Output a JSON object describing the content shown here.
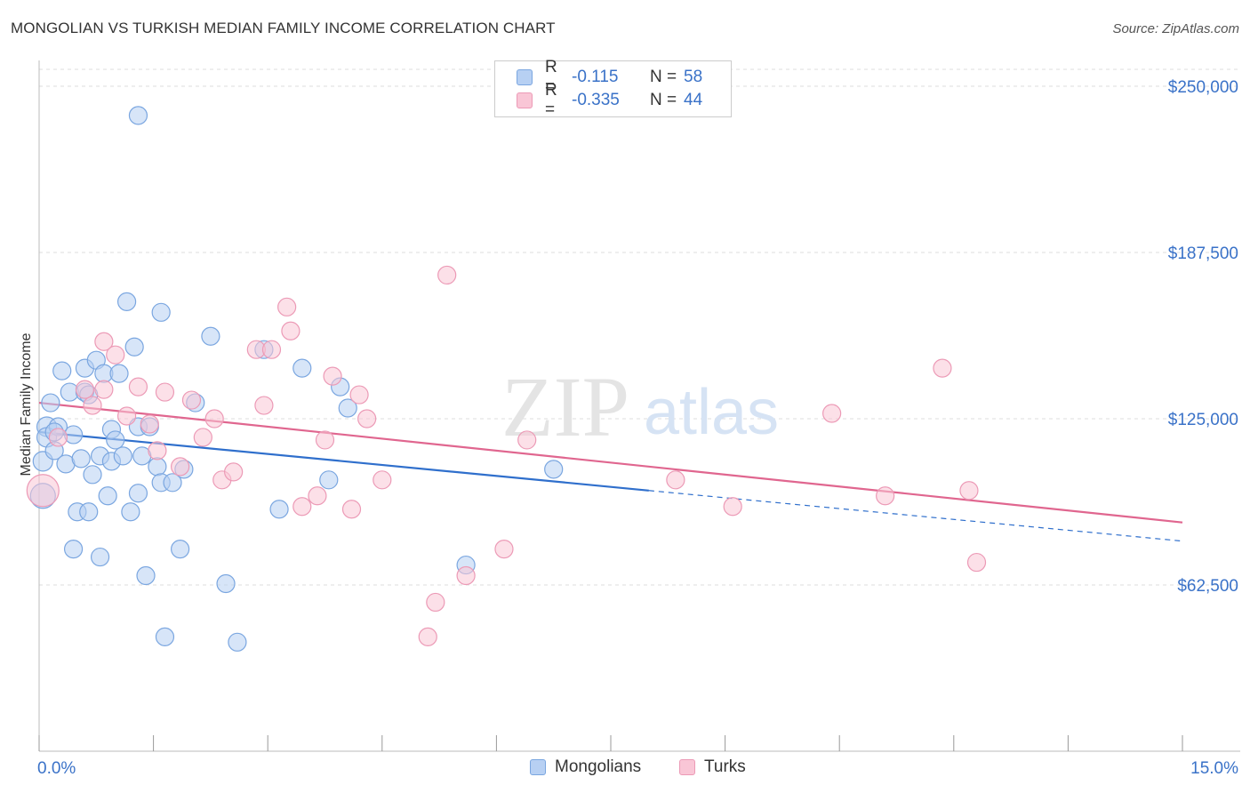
{
  "title": "MONGOLIAN VS TURKISH MEDIAN FAMILY INCOME CORRELATION CHART",
  "source": "Source: ZipAtlas.com",
  "watermark": {
    "zip": "ZIP",
    "atlas": "atlas"
  },
  "legend": {
    "r_label": "R =",
    "n_label": "N =",
    "rows": [
      {
        "r": "-0.115",
        "n": "58"
      },
      {
        "r": "-0.335",
        "n": "44"
      }
    ]
  },
  "colors": {
    "mongolians_fill": "#b7d0f3",
    "mongolians_stroke": "#7aa6e0",
    "mongolians_line": "#2f6fcc",
    "turks_fill": "#f9c6d6",
    "turks_stroke": "#ec9ab6",
    "turks_line": "#e0668f",
    "grid": "#dddddd",
    "tick_label": "#3a72c8"
  },
  "chart_data": {
    "type": "scatter",
    "xlabel": "",
    "ylabel": "Median Family Income",
    "xlim": [
      0,
      15
    ],
    "ylim": [
      0,
      255000
    ],
    "x_tick_labels": [
      "0.0%",
      "15.0%"
    ],
    "y_ticks": [
      {
        "value": 62500,
        "label": "$62,500"
      },
      {
        "value": 125000,
        "label": "$125,000"
      },
      {
        "value": 187500,
        "label": "$187,500"
      },
      {
        "value": 250000,
        "label": "$250,000"
      }
    ],
    "grid": "horizontal dashed",
    "series": [
      {
        "name": "Mongolians",
        "r": -0.115,
        "n": 58,
        "trend": {
          "x0": 0.0,
          "y0": 120000,
          "x1": 8.0,
          "y1": 98000,
          "dashed_to_x": 15.0,
          "dashed_to_y": 79000
        },
        "points": [
          [
            0.05,
            96000,
            14
          ],
          [
            0.05,
            109000,
            11
          ],
          [
            0.1,
            122000,
            11
          ],
          [
            0.1,
            118000,
            11
          ],
          [
            0.15,
            131000,
            10
          ],
          [
            0.2,
            113000,
            10
          ],
          [
            0.25,
            122000,
            10
          ],
          [
            0.3,
            143000,
            10
          ],
          [
            0.35,
            108000,
            10
          ],
          [
            0.4,
            135000,
            10
          ],
          [
            0.45,
            119000,
            10
          ],
          [
            0.5,
            90000,
            10
          ],
          [
            0.55,
            110000,
            10
          ],
          [
            0.6,
            135000,
            10
          ],
          [
            0.6,
            144000,
            10
          ],
          [
            0.65,
            90000,
            10
          ],
          [
            0.65,
            134000,
            10
          ],
          [
            0.7,
            104000,
            10
          ],
          [
            0.75,
            147000,
            10
          ],
          [
            0.8,
            111000,
            10
          ],
          [
            0.85,
            142000,
            10
          ],
          [
            0.9,
            96000,
            10
          ],
          [
            0.95,
            109000,
            10
          ],
          [
            0.95,
            121000,
            10
          ],
          [
            1.0,
            117000,
            10
          ],
          [
            1.05,
            142000,
            10
          ],
          [
            1.1,
            111000,
            10
          ],
          [
            1.15,
            169000,
            10
          ],
          [
            1.2,
            90000,
            10
          ],
          [
            1.25,
            152000,
            10
          ],
          [
            1.3,
            97000,
            10
          ],
          [
            1.3,
            122000,
            10
          ],
          [
            1.35,
            111000,
            10
          ],
          [
            1.4,
            66000,
            10
          ],
          [
            1.45,
            122000,
            10
          ],
          [
            1.55,
            107000,
            10
          ],
          [
            1.6,
            101000,
            10
          ],
          [
            1.6,
            165000,
            10
          ],
          [
            1.65,
            43000,
            10
          ],
          [
            1.75,
            101000,
            10
          ],
          [
            1.85,
            76000,
            10
          ],
          [
            1.9,
            106000,
            10
          ],
          [
            2.05,
            131000,
            10
          ],
          [
            2.25,
            156000,
            10
          ],
          [
            2.45,
            63000,
            10
          ],
          [
            2.6,
            41000,
            10
          ],
          [
            2.95,
            151000,
            10
          ],
          [
            3.15,
            91000,
            10
          ],
          [
            3.45,
            144000,
            10
          ],
          [
            3.8,
            102000,
            10
          ],
          [
            3.95,
            137000,
            10
          ],
          [
            4.05,
            129000,
            10
          ],
          [
            5.6,
            70000,
            10
          ],
          [
            6.75,
            106000,
            10
          ],
          [
            0.45,
            76000,
            10
          ],
          [
            0.8,
            73000,
            10
          ],
          [
            0.2,
            120000,
            10
          ],
          [
            1.3,
            239000,
            10
          ]
        ]
      },
      {
        "name": "Turks",
        "r": -0.335,
        "n": 44,
        "trend": {
          "x0": 0.0,
          "y0": 131000,
          "x1": 15.0,
          "y1": 86000
        },
        "points": [
          [
            0.05,
            98000,
            18
          ],
          [
            0.25,
            118000,
            10
          ],
          [
            0.6,
            136000,
            10
          ],
          [
            0.7,
            130000,
            10
          ],
          [
            0.85,
            136000,
            10
          ],
          [
            0.85,
            154000,
            10
          ],
          [
            1.0,
            149000,
            10
          ],
          [
            1.15,
            126000,
            10
          ],
          [
            1.3,
            137000,
            10
          ],
          [
            1.45,
            123000,
            10
          ],
          [
            1.55,
            113000,
            10
          ],
          [
            1.65,
            135000,
            10
          ],
          [
            1.85,
            107000,
            10
          ],
          [
            2.0,
            132000,
            10
          ],
          [
            2.15,
            118000,
            10
          ],
          [
            2.3,
            125000,
            10
          ],
          [
            2.4,
            102000,
            10
          ],
          [
            2.55,
            105000,
            10
          ],
          [
            2.85,
            151000,
            10
          ],
          [
            2.95,
            130000,
            10
          ],
          [
            3.05,
            151000,
            10
          ],
          [
            3.25,
            167000,
            10
          ],
          [
            3.3,
            158000,
            10
          ],
          [
            3.45,
            92000,
            10
          ],
          [
            3.65,
            96000,
            10
          ],
          [
            3.75,
            117000,
            10
          ],
          [
            3.85,
            141000,
            10
          ],
          [
            4.1,
            91000,
            10
          ],
          [
            4.2,
            134000,
            10
          ],
          [
            4.3,
            125000,
            10
          ],
          [
            4.5,
            102000,
            10
          ],
          [
            5.1,
            43000,
            10
          ],
          [
            5.2,
            56000,
            10
          ],
          [
            5.35,
            179000,
            10
          ],
          [
            5.6,
            66000,
            10
          ],
          [
            6.1,
            76000,
            10
          ],
          [
            6.4,
            117000,
            10
          ],
          [
            8.35,
            102000,
            10
          ],
          [
            9.1,
            92000,
            10
          ],
          [
            10.4,
            127000,
            10
          ],
          [
            11.1,
            96000,
            10
          ],
          [
            11.85,
            144000,
            10
          ],
          [
            12.2,
            98000,
            10
          ],
          [
            12.3,
            71000,
            10
          ]
        ]
      }
    ]
  }
}
